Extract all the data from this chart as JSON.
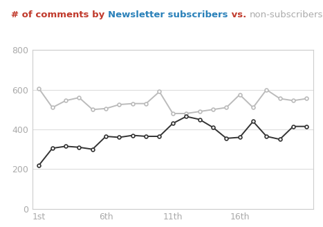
{
  "title_parts": [
    {
      "text": "# of comments by ",
      "color": "#C0392B",
      "bold": true
    },
    {
      "text": "Newsletter subscribers",
      "color": "#2980B9",
      "bold": true
    },
    {
      "text": " vs. ",
      "color": "#C0392B",
      "bold": true
    },
    {
      "text": "non-subscribers",
      "color": "#AAAAAA",
      "bold": false
    }
  ],
  "subscribers": [
    220,
    305,
    315,
    310,
    300,
    365,
    360,
    370,
    365,
    365,
    430,
    465,
    450,
    410,
    355,
    360,
    440,
    365,
    350,
    415,
    415
  ],
  "non_subscribers": [
    605,
    510,
    545,
    560,
    500,
    505,
    525,
    530,
    530,
    590,
    480,
    480,
    490,
    500,
    510,
    575,
    510,
    600,
    555,
    545,
    555
  ],
  "x_tick_positions": [
    0,
    5,
    10,
    15
  ],
  "x_tick_labels": [
    "1st",
    "6th",
    "11th",
    "16th"
  ],
  "ylim": [
    0,
    800
  ],
  "yticks": [
    0,
    200,
    400,
    600,
    800
  ],
  "subscriber_color": "#333333",
  "non_subscriber_color": "#BBBBBB",
  "background_color": "#FFFFFF",
  "grid_color": "#DDDDDD",
  "tick_color": "#AAAAAA",
  "title_fontsize": 9.5,
  "tick_fontsize": 9
}
